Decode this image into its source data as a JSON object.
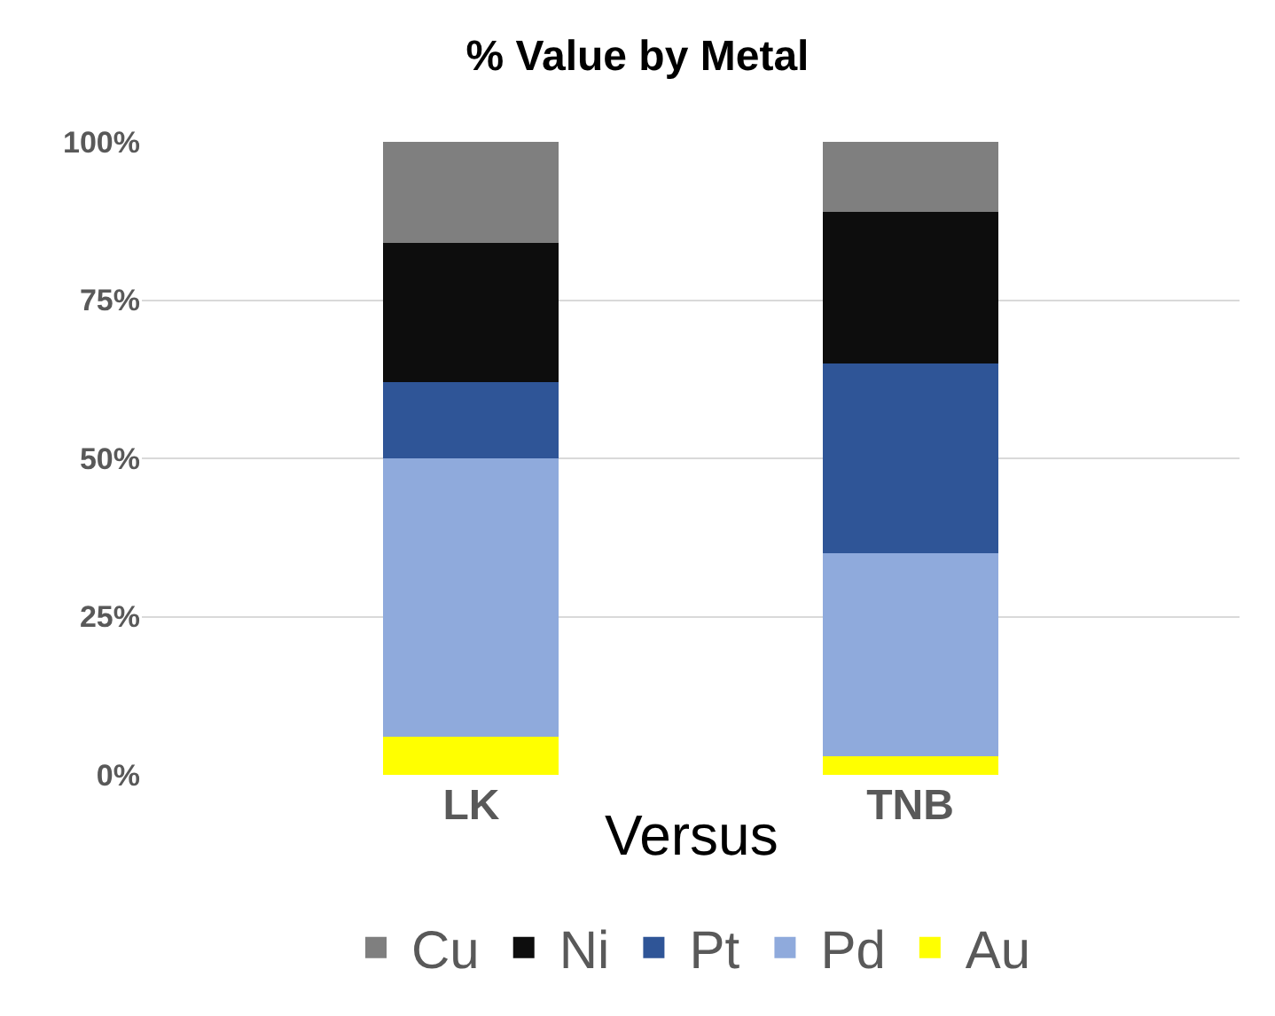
{
  "chart_data": {
    "type": "bar",
    "title": "% Value by Metal",
    "stacked": true,
    "categories": [
      "LK",
      "TNB"
    ],
    "series": [
      {
        "name": "Au",
        "color": "#ffff00",
        "values": [
          6,
          3
        ]
      },
      {
        "name": "Pd",
        "color": "#8faadc",
        "values": [
          44,
          32
        ]
      },
      {
        "name": "Pt",
        "color": "#2f5597",
        "values": [
          12,
          30
        ]
      },
      {
        "name": "Ni",
        "color": "#0d0d0d",
        "values": [
          22,
          24
        ]
      },
      {
        "name": "Cu",
        "color": "#7f7f7f",
        "values": [
          16,
          11
        ]
      }
    ],
    "ylim": [
      0,
      100
    ],
    "yticks": [
      {
        "value": 0,
        "label": "0%"
      },
      {
        "value": 25,
        "label": "25%"
      },
      {
        "value": 50,
        "label": "50%"
      },
      {
        "value": 75,
        "label": "75%"
      },
      {
        "value": 100,
        "label": "100%"
      }
    ],
    "grid": "y",
    "legend": "bottom",
    "annotations": [
      "Versus"
    ]
  }
}
